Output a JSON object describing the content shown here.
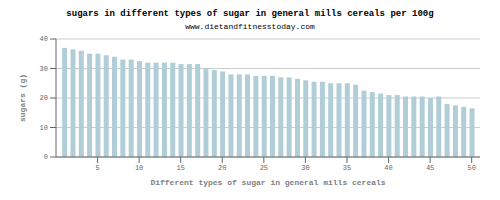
{
  "chart_data": {
    "type": "bar",
    "title": "sugars in different types of sugar in general mills cereals per 100g",
    "subtitle": "www.dietandfitnesstoday.com",
    "xlabel": "Different types of sugar in general mills cereals",
    "ylabel": "sugars (g)",
    "x": [
      1,
      2,
      3,
      4,
      5,
      6,
      7,
      8,
      9,
      10,
      11,
      12,
      13,
      14,
      15,
      16,
      17,
      18,
      19,
      20,
      21,
      22,
      23,
      24,
      25,
      26,
      27,
      28,
      29,
      30,
      31,
      32,
      33,
      34,
      35,
      36,
      37,
      38,
      39,
      40,
      41,
      42,
      43,
      44,
      45,
      46,
      47,
      48,
      49,
      50
    ],
    "values": [
      37,
      36.5,
      36,
      35,
      35,
      34.5,
      34,
      33,
      33,
      32.5,
      32,
      32,
      32,
      32,
      31.5,
      31.5,
      31.5,
      30,
      29.5,
      29,
      28,
      28,
      28,
      27.5,
      27.5,
      27.5,
      27,
      27,
      26.5,
      26,
      25.5,
      25.5,
      25,
      25,
      25,
      24.5,
      22.5,
      22,
      21.5,
      21,
      21,
      20.5,
      20.5,
      20.5,
      20,
      20.5,
      18,
      17.5,
      17,
      16.5
    ],
    "color": "#b0cdd8",
    "xlim": [
      0,
      51
    ],
    "xticks": [
      5,
      10,
      15,
      20,
      25,
      30,
      35,
      40,
      45,
      50
    ],
    "ylim": [
      0,
      40
    ],
    "yticks": [
      0,
      10,
      20,
      30,
      40
    ],
    "grid": true
  }
}
